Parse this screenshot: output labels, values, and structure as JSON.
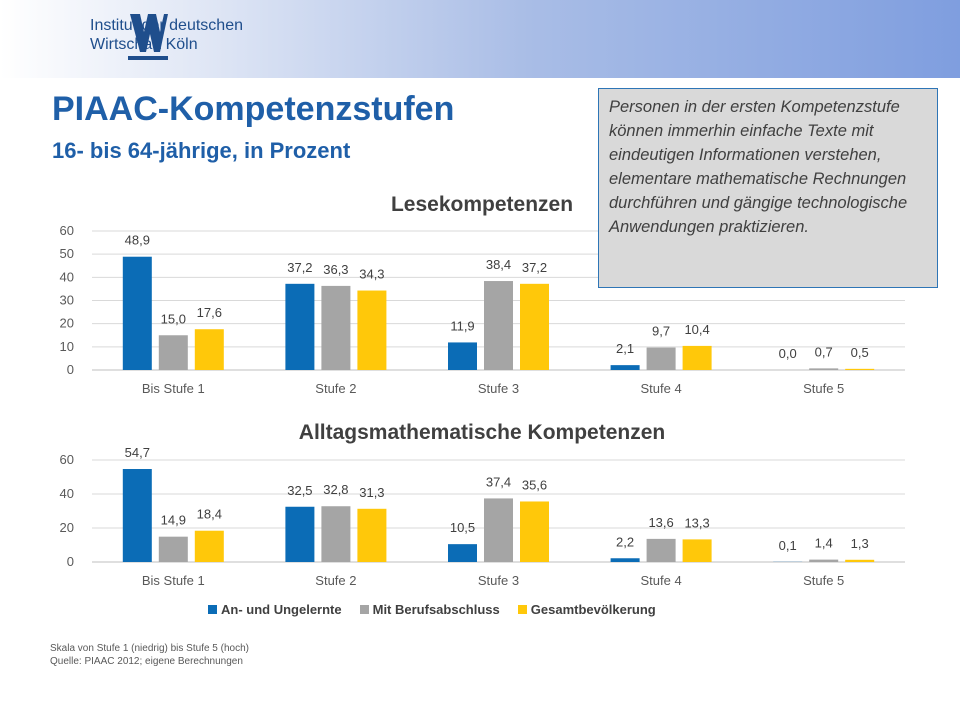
{
  "header": {
    "logo_line1": "Institut der deutschen",
    "logo_line2": "Wirtschaft Köln",
    "title": "PIAAC-Kompetenzstufen",
    "subtitle": "16- bis 64-jährige, in Prozent"
  },
  "callout": {
    "text": "Personen in der ersten Kompetenzstufe können immerhin einfache Texte mit eindeutigen Informationen verstehen, elementare mathematische Rechnungen durchführen und gängige technologische Anwendungen praktizieren."
  },
  "colors": {
    "series1": "#0b6cb6",
    "series2": "#a5a5a5",
    "series3": "#ffc80a",
    "title": "#1f5fa8"
  },
  "legend": {
    "items": [
      "An- und Ungelernte",
      "Mit Berufsabschluss",
      "Gesamtbevölkerung"
    ]
  },
  "chart_data": [
    {
      "type": "bar",
      "title": "Lesekompetenzen",
      "categories": [
        "Bis Stufe 1",
        "Stufe 2",
        "Stufe 3",
        "Stufe 4",
        "Stufe 5"
      ],
      "yticks": [
        "0",
        "10",
        "20",
        "30",
        "40",
        "50",
        "60"
      ],
      "ylim": [
        0,
        60
      ],
      "grid": true,
      "legend": "bottom",
      "series": [
        {
          "name": "An- und Ungelernte",
          "values": [
            48.9,
            37.2,
            11.9,
            2.1,
            0.0
          ],
          "labels": [
            "48,9",
            "37,2",
            "11,9",
            "2,1",
            "0,0"
          ]
        },
        {
          "name": "Mit Berufsabschluss",
          "values": [
            15.0,
            36.3,
            38.4,
            9.7,
            0.7
          ],
          "labels": [
            "15,0",
            "36,3",
            "38,4",
            "9,7",
            "0,7"
          ]
        },
        {
          "name": "Gesamtbevölkerung",
          "values": [
            17.6,
            34.3,
            37.2,
            10.4,
            0.5
          ],
          "labels": [
            "17,6",
            "34,3",
            "37,2",
            "10,4",
            "0,5"
          ]
        }
      ]
    },
    {
      "type": "bar",
      "title": "Alltagsmathematische Kompetenzen",
      "categories": [
        "Bis Stufe 1",
        "Stufe 2",
        "Stufe 3",
        "Stufe 4",
        "Stufe 5"
      ],
      "yticks": [
        "0",
        "20",
        "40",
        "60"
      ],
      "ylim": [
        0,
        60
      ],
      "grid": true,
      "legend": "bottom",
      "series": [
        {
          "name": "An- und Ungelernte",
          "values": [
            54.7,
            32.5,
            10.5,
            2.2,
            0.1
          ],
          "labels": [
            "54,7",
            "32,5",
            "10,5",
            "2,2",
            "0,1"
          ]
        },
        {
          "name": "Mit Berufsabschluss",
          "values": [
            14.9,
            32.8,
            37.4,
            13.6,
            1.4
          ],
          "labels": [
            "14,9",
            "32,8",
            "37,4",
            "13,6",
            "1,4"
          ]
        },
        {
          "name": "Gesamtbevölkerung",
          "values": [
            18.4,
            31.3,
            35.6,
            13.3,
            1.3
          ],
          "labels": [
            "18,4",
            "31,3",
            "35,6",
            "13,3",
            "1,3"
          ]
        }
      ]
    }
  ],
  "footnote": {
    "line1": "Skala von Stufe 1 (niedrig) bis Stufe 5 (hoch)",
    "line2": "Quelle: PIAAC 2012; eigene Berechnungen"
  }
}
